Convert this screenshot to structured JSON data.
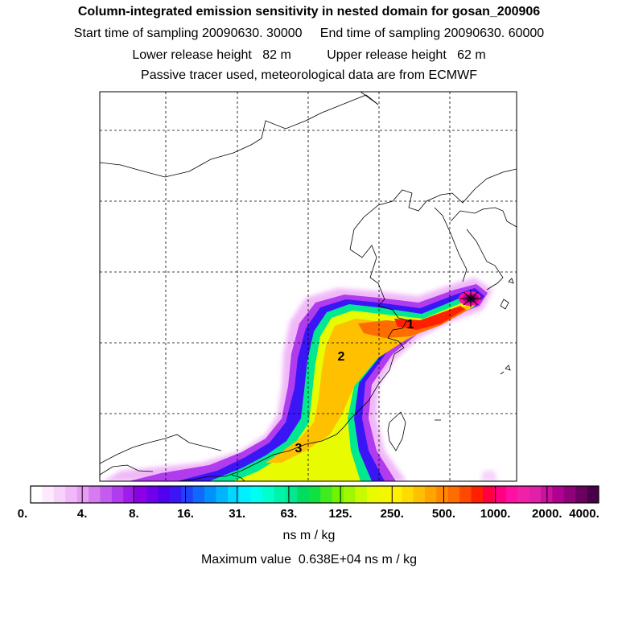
{
  "titles": {
    "line1": "Column-integrated emission sensitivity in nested domain for gosan_200906",
    "line2": "Start time of sampling 20090630. 30000     End time of sampling 20090630. 60000",
    "line3": "Lower release height   82 m          Upper release height   62 m",
    "line4": "Passive tracer used, meteorological data are from ECMWF"
  },
  "map": {
    "labels": [
      "1",
      "2",
      "3"
    ],
    "receptor_marker": "star-marker"
  },
  "colorbar": {
    "tick_labels": [
      "0.",
      "4.",
      "8.",
      "16.",
      "31.",
      "63.",
      "125.",
      "250.",
      "500.",
      "1000.",
      "2000.",
      "4000."
    ],
    "colors": [
      "#ffffff",
      "#fde9fd",
      "#f7d3fb",
      "#f0b8f8",
      "#e89cf5",
      "#d57cf2",
      "#c45cf0",
      "#b13cee",
      "#9f1ceb",
      "#8c00e8",
      "#6f00ec",
      "#5400f0",
      "#3a16f6",
      "#2040fa",
      "#1068fc",
      "#0090fd",
      "#00b4fe",
      "#00d8ff",
      "#00f0ff",
      "#00ffee",
      "#00ffcc",
      "#00f4a8",
      "#00e890",
      "#00dc60",
      "#10e040",
      "#40ec20",
      "#70f400",
      "#a0f800",
      "#c8fa00",
      "#e8fb00",
      "#f4f700",
      "#fff000",
      "#ffdc00",
      "#ffc000",
      "#ffa400",
      "#ff8800",
      "#ff6c00",
      "#ff4800",
      "#ff2000",
      "#ff0040",
      "#ff0080",
      "#ff10a0",
      "#f020a8",
      "#e020a8",
      "#cc10a0",
      "#b00090",
      "#900078",
      "#6c0060",
      "#4a0048"
    ],
    "unit": "ns m / kg"
  },
  "max_value": "Maximum value  0.638E+04 ns m / kg"
}
